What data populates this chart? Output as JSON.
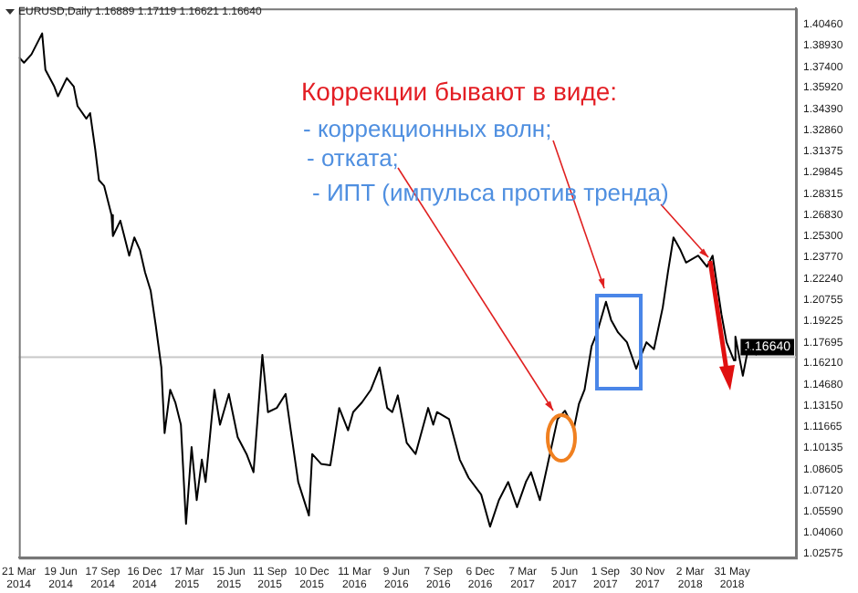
{
  "chart_data": {
    "type": "line",
    "marker": "none",
    "line_style": "solid",
    "grid": false,
    "legend": false,
    "x": [
      "2014-03-21",
      "2014-04-01",
      "2014-04-17",
      "2014-05-10",
      "2014-05-17",
      "2014-06-05",
      "2014-06-13",
      "2014-07-02",
      "2014-07-17",
      "2014-07-25",
      "2014-08-13",
      "2014-08-21",
      "2014-09-01",
      "2014-09-09",
      "2014-09-20",
      "2014-10-06",
      "2014-10-09",
      "2014-10-25",
      "2014-11-13",
      "2014-11-24",
      "2014-12-06",
      "2014-12-17",
      "2014-12-29",
      "2015-01-09",
      "2015-01-21",
      "2015-01-28",
      "2015-02-09",
      "2015-02-20",
      "2015-03-04",
      "2015-03-15",
      "2015-03-27",
      "2015-04-07",
      "2015-04-18",
      "2015-04-26",
      "2015-05-15",
      "2015-05-27",
      "2015-06-15",
      "2015-07-04",
      "2015-07-23",
      "2015-08-07",
      "2015-08-26",
      "2015-09-07",
      "2015-09-26",
      "2015-10-15",
      "2015-10-26",
      "2015-11-11",
      "2015-12-04",
      "2015-12-11",
      "2015-12-30",
      "2016-01-19",
      "2016-02-07",
      "2016-02-26",
      "2016-03-08",
      "2016-03-27",
      "2016-04-15",
      "2016-05-04",
      "2016-05-20",
      "2016-05-31",
      "2016-06-12",
      "2016-07-01",
      "2016-07-20",
      "2016-08-16",
      "2016-08-27",
      "2016-09-04",
      "2016-09-30",
      "2016-10-23",
      "2016-11-11",
      "2016-12-08",
      "2016-12-27",
      "2017-01-15",
      "2017-02-04",
      "2017-02-23",
      "2017-03-14",
      "2017-03-25",
      "2017-04-13",
      "2017-05-02",
      "2017-05-21",
      "2017-06-06",
      "2017-06-25",
      "2017-07-06",
      "2017-07-18",
      "2017-08-02",
      "2017-08-14",
      "2017-09-02",
      "2017-09-13",
      "2017-09-28",
      "2017-10-17",
      "2017-11-06",
      "2017-11-17",
      "2017-11-28",
      "2017-12-14",
      "2018-01-02",
      "2018-01-13",
      "2018-01-25",
      "2018-02-09",
      "2018-02-21",
      "2018-03-19",
      "2018-04-07",
      "2018-04-19",
      "2018-05-08",
      "2018-05-19",
      "2018-06-04",
      "2018-06-07",
      "2018-06-23",
      "2018-07-04",
      "2018-07-23"
    ],
    "series": [
      {
        "color": "#000000",
        "values": [
          1.381,
          1.377,
          1.383,
          1.398,
          1.372,
          1.36,
          1.353,
          1.366,
          1.36,
          1.346,
          1.337,
          1.341,
          1.315,
          1.293,
          1.289,
          1.268,
          1.253,
          1.264,
          1.239,
          1.252,
          1.243,
          1.227,
          1.214,
          1.189,
          1.159,
          1.112,
          1.143,
          1.134,
          1.118,
          1.047,
          1.102,
          1.064,
          1.093,
          1.077,
          1.143,
          1.118,
          1.14,
          1.109,
          1.097,
          1.084,
          1.168,
          1.127,
          1.13,
          1.14,
          1.114,
          1.077,
          1.053,
          1.097,
          1.09,
          1.089,
          1.13,
          1.114,
          1.127,
          1.134,
          1.143,
          1.159,
          1.13,
          1.127,
          1.139,
          1.105,
          1.097,
          1.13,
          1.118,
          1.127,
          1.122,
          1.093,
          1.08,
          1.068,
          1.045,
          1.064,
          1.077,
          1.059,
          1.077,
          1.084,
          1.064,
          1.093,
          1.122,
          1.128,
          1.115,
          1.133,
          1.143,
          1.174,
          1.184,
          1.206,
          1.193,
          1.184,
          1.177,
          1.158,
          1.168,
          1.177,
          1.172,
          1.202,
          1.227,
          1.252,
          1.243,
          1.234,
          1.239,
          1.231,
          1.239,
          1.197,
          1.177,
          1.164,
          1.181,
          1.153,
          1.172,
          1.168
        ]
      }
    ],
    "xlim": [
      "2014-03-21",
      "2018-10-15"
    ],
    "xticks": [
      {
        "value": "2014-03-21",
        "label": "21 Mar 2014"
      },
      {
        "value": "2014-06-19",
        "label": "19 Jun 2014"
      },
      {
        "value": "2014-09-17",
        "label": "17 Sep 2014"
      },
      {
        "value": "2014-12-16",
        "label": "16 Dec 2014"
      },
      {
        "value": "2015-03-17",
        "label": "17 Mar 2015"
      },
      {
        "value": "2015-06-15",
        "label": "15 Jun 2015"
      },
      {
        "value": "2015-09-11",
        "label": "11 Sep 2015"
      },
      {
        "value": "2015-12-10",
        "label": "10 Dec 2015"
      },
      {
        "value": "2016-03-11",
        "label": "11 Mar 2016"
      },
      {
        "value": "2016-06-09",
        "label": "9 Jun 2016"
      },
      {
        "value": "2016-09-07",
        "label": "7 Sep 2016"
      },
      {
        "value": "2016-12-06",
        "label": "6 Dec 2016"
      },
      {
        "value": "2017-03-07",
        "label": "7 Mar 2017"
      },
      {
        "value": "2017-06-05",
        "label": "5 Jun 2017"
      },
      {
        "value": "2017-09-01",
        "label": "1 Sep 2017"
      },
      {
        "value": "2017-11-30",
        "label": "30 Nov 2017"
      },
      {
        "value": "2018-03-02",
        "label": "2 Mar 2018"
      },
      {
        "value": "2018-05-31",
        "label": "31 May 2018"
      }
    ],
    "ylim": [
      1.0229,
      1.4159
    ],
    "yticks": [
      {
        "value": 1.4046,
        "label": "1.40460"
      },
      {
        "value": 1.3893,
        "label": "1.38930"
      },
      {
        "value": 1.374,
        "label": "1.37400"
      },
      {
        "value": 1.3592,
        "label": "1.35920"
      },
      {
        "value": 1.3439,
        "label": "1.34390"
      },
      {
        "value": 1.3286,
        "label": "1.32860"
      },
      {
        "value": 1.31375,
        "label": "1.31375"
      },
      {
        "value": 1.29845,
        "label": "1.29845"
      },
      {
        "value": 1.28315,
        "label": "1.28315"
      },
      {
        "value": 1.2683,
        "label": "1.26830"
      },
      {
        "value": 1.253,
        "label": "1.25300"
      },
      {
        "value": 1.2377,
        "label": "1.23770"
      },
      {
        "value": 1.2224,
        "label": "1.22240"
      },
      {
        "value": 1.20755,
        "label": "1.20755"
      },
      {
        "value": 1.19225,
        "label": "1.19225"
      },
      {
        "value": 1.17695,
        "label": "1.17695"
      },
      {
        "value": 1.1621,
        "label": "1.16210"
      },
      {
        "value": 1.1468,
        "label": "1.14680"
      },
      {
        "value": 1.1315,
        "label": "1.13150"
      },
      {
        "value": 1.11665,
        "label": "1.11665"
      },
      {
        "value": 1.10135,
        "label": "1.10135"
      },
      {
        "value": 1.08605,
        "label": "1.08605"
      },
      {
        "value": 1.0712,
        "label": "1.07120"
      },
      {
        "value": 1.0559,
        "label": "1.05590"
      },
      {
        "value": 1.0406,
        "label": "1.04060"
      },
      {
        "value": 1.02575,
        "label": "1.02575"
      }
    ],
    "ref_lines": [
      {
        "axis": "y",
        "value": 1.1664,
        "label": "1.16640",
        "color": "#c8c8c8"
      }
    ],
    "annotations": [
      "EURUSD,Daily 1.16889 1.17119 1.16621 1.16640",
      "Коррекции бывают в виде:",
      "- коррекционных волн;",
      "- отката;",
      "- ИПТ (импульса против тренда)"
    ]
  }
}
